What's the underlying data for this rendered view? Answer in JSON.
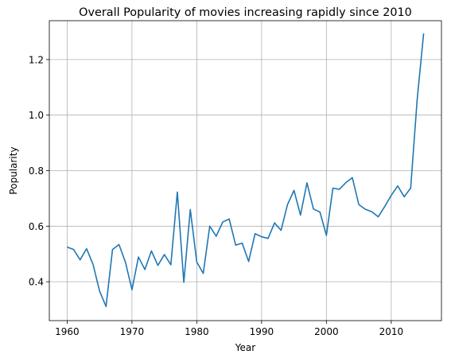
{
  "chart_data": {
    "type": "line",
    "title": "Overall Popularity of movies increasing rapidly since 2010",
    "xlabel": "Year",
    "ylabel": "Popularity",
    "xlim": [
      1957.25,
      2017.75
    ],
    "ylim": [
      0.26,
      1.34
    ],
    "xticks": [
      1960,
      1970,
      1980,
      1990,
      2000,
      2010
    ],
    "yticks": [
      0.4,
      0.6,
      0.8,
      1.0,
      1.2
    ],
    "ytick_labels": [
      "0.4",
      "0.6",
      "0.8",
      "1.0",
      "1.2"
    ],
    "grid": true,
    "legend": "none",
    "series": [
      {
        "color": "#1f77b4",
        "x": [
          1960,
          1961,
          1962,
          1963,
          1964,
          1965,
          1966,
          1967,
          1968,
          1969,
          1970,
          1971,
          1972,
          1973,
          1974,
          1975,
          1976,
          1977,
          1978,
          1979,
          1980,
          1981,
          1982,
          1983,
          1984,
          1985,
          1986,
          1987,
          1988,
          1989,
          1990,
          1991,
          1992,
          1993,
          1994,
          1995,
          1996,
          1997,
          1998,
          1999,
          2000,
          2001,
          2002,
          2003,
          2004,
          2005,
          2006,
          2007,
          2008,
          2009,
          2010,
          2011,
          2012,
          2013,
          2014,
          2015
        ],
        "values": [
          0.525,
          0.516,
          0.479,
          0.519,
          0.462,
          0.367,
          0.311,
          0.516,
          0.534,
          0.47,
          0.371,
          0.489,
          0.444,
          0.511,
          0.459,
          0.498,
          0.461,
          0.723,
          0.398,
          0.66,
          0.471,
          0.43,
          0.6,
          0.564,
          0.615,
          0.626,
          0.532,
          0.539,
          0.473,
          0.573,
          0.562,
          0.556,
          0.612,
          0.585,
          0.678,
          0.729,
          0.64,
          0.756,
          0.662,
          0.651,
          0.567,
          0.737,
          0.733,
          0.757,
          0.775,
          0.678,
          0.661,
          0.652,
          0.634,
          0.671,
          0.711,
          0.745,
          0.706,
          0.737,
          1.055,
          1.294
        ]
      }
    ]
  }
}
